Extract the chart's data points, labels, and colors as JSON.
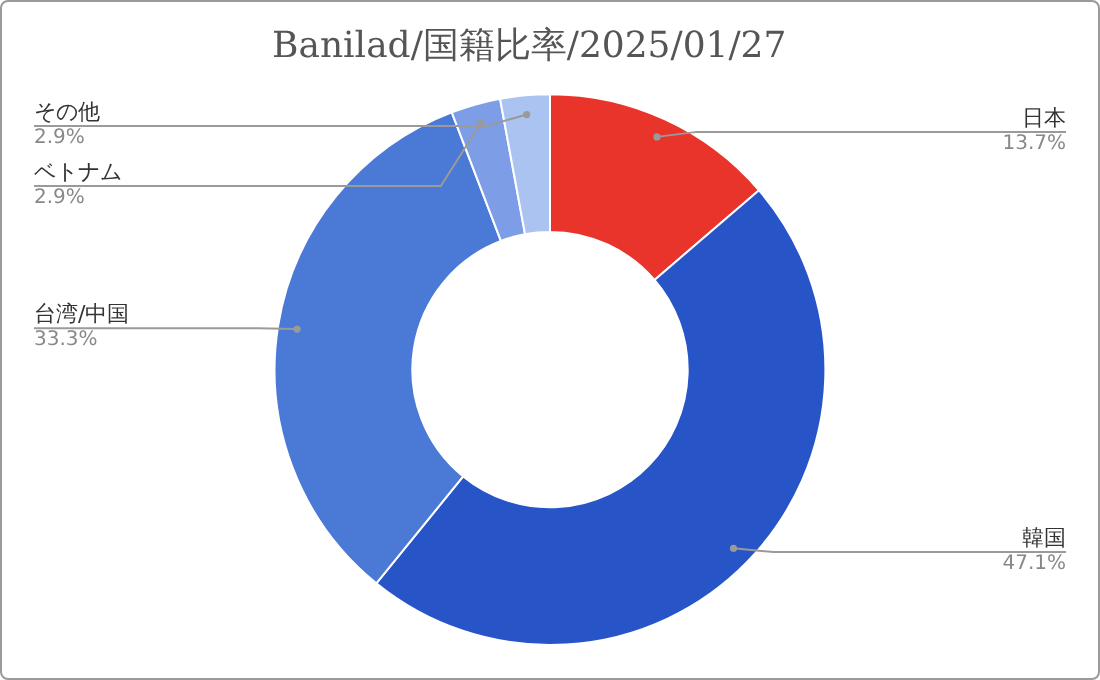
{
  "chart_data": {
    "type": "donut",
    "title": "Banilad/国籍比率/2025/01/27",
    "categories": [
      "日本",
      "韓国",
      "台湾/中国",
      "ベトナム",
      "その他"
    ],
    "values": [
      13.7,
      47.1,
      33.3,
      2.9,
      2.9
    ],
    "colors": [
      "#e8342a",
      "#2754c6",
      "#4a79d6",
      "#7d9ee6",
      "#aac3f1"
    ],
    "value_labels": [
      "13.7%",
      "47.1%",
      "33.3%",
      "2.9%",
      "2.9%"
    ],
    "legend": false
  }
}
